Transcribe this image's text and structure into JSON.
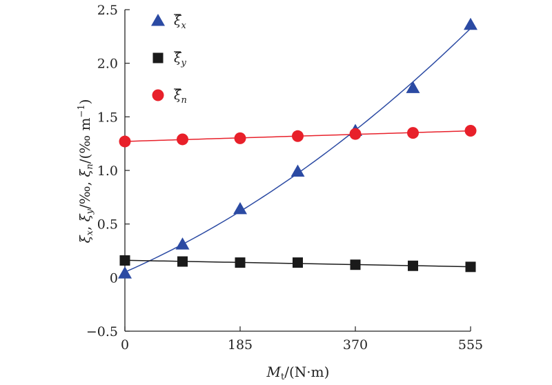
{
  "chart_data": {
    "type": "scatter",
    "title": "",
    "xlabel": "Mt/(N·m)",
    "ylabel": "ξx, ξy/‰, ξn/(‰ m⁻¹)",
    "xlim": [
      0,
      555
    ],
    "ylim": [
      -0.5,
      2.5
    ],
    "x_ticks": [
      0,
      185,
      370,
      555
    ],
    "y_ticks": [
      -0.5,
      0,
      0.5,
      1.0,
      1.5,
      2.0,
      2.5
    ],
    "y_tick_labels": [
      "−0.5",
      "0",
      "0.5",
      "1.0",
      "1.5",
      "2.0",
      "2.5"
    ],
    "grid": false,
    "legend_position": "top-left",
    "x": [
      0,
      92.5,
      185,
      277.5,
      370,
      462.5,
      555
    ],
    "series": [
      {
        "name": "ξx",
        "marker": "triangle",
        "color": "#2b4aa3",
        "fit": "quadratic",
        "values": [
          0.04,
          0.31,
          0.64,
          0.99,
          1.37,
          1.77,
          2.36
        ]
      },
      {
        "name": "ξy",
        "marker": "square",
        "color": "#1a1a1a",
        "fit": "linear",
        "values": [
          0.16,
          0.15,
          0.14,
          0.14,
          0.12,
          0.11,
          0.1
        ]
      },
      {
        "name": "ξn",
        "marker": "circle",
        "color": "#e8202a",
        "fit": "linear",
        "values": [
          1.27,
          1.29,
          1.3,
          1.32,
          1.34,
          1.35,
          1.37
        ]
      }
    ]
  }
}
